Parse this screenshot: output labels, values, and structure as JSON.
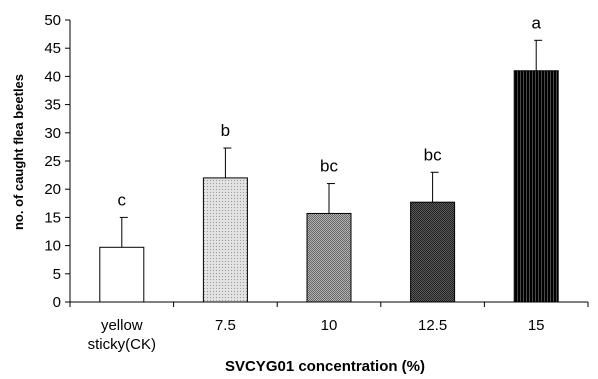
{
  "chart_data": {
    "type": "bar",
    "title": "",
    "xlabel": "SVCYG01 concentration (%)",
    "ylabel": "no. of caught flea beetles",
    "ylim": [
      0,
      50
    ],
    "yticks": [
      0,
      5,
      10,
      15,
      20,
      25,
      30,
      35,
      40,
      45,
      50
    ],
    "grid": false,
    "legend": "none",
    "categories": [
      [
        "yellow",
        "sticky(CK)"
      ],
      [
        "7.5"
      ],
      [
        "10"
      ],
      [
        "12.5"
      ],
      [
        "15"
      ]
    ],
    "values": [
      9.7,
      22.0,
      15.7,
      17.7,
      41.0
    ],
    "error_upper": [
      5.3,
      5.3,
      5.3,
      5.3,
      5.4
    ],
    "significance_letters": [
      "c",
      "b",
      "bc",
      "bc",
      "a"
    ],
    "bar_fills": [
      {
        "fill": "#ffffff",
        "pattern": "none"
      },
      {
        "fill": "#e2e2e2",
        "pattern": "fine-dots"
      },
      {
        "fill": "#9a9a9a",
        "pattern": "checker"
      },
      {
        "fill": "#444444",
        "pattern": "checker"
      },
      {
        "fill": "#111111",
        "pattern": "vertical-lines"
      }
    ]
  }
}
